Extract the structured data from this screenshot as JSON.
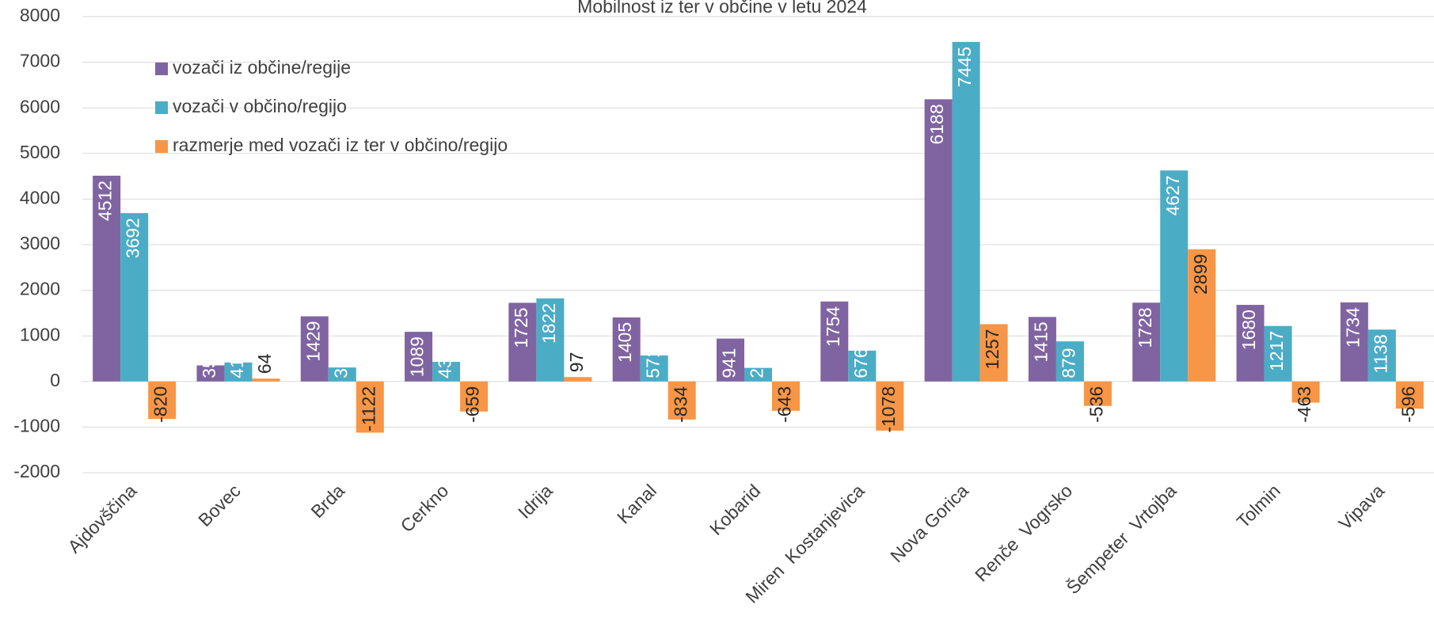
{
  "chart_data": {
    "type": "bar",
    "title": "Mobilnost iz ter v občine v letu 2024",
    "categories": [
      "Ajdovščina",
      "Bovec",
      "Brda",
      "Cerkno",
      "Idrija",
      "Kanal",
      "Kobarid",
      "Miren  Kostanjevica",
      "Nova Gorica",
      "Renče  Vogrsko",
      "Šempeter  Vrtojba",
      "Tolmin",
      "Vipava"
    ],
    "series": [
      {
        "name": "vozači iz občine/regije",
        "color": "#8064a2",
        "values": [
          4512,
          353,
          1429,
          1089,
          1725,
          1405,
          941,
          1754,
          6188,
          1415,
          1728,
          1680,
          1734
        ]
      },
      {
        "name": "vozači v občino/regijo",
        "color": "#4bacc6",
        "values": [
          3692,
          417,
          307,
          430,
          1822,
          571,
          298,
          676,
          7445,
          879,
          4627,
          1217,
          1138
        ]
      },
      {
        "name": "razmerje med vozači iz ter v občino/regijo",
        "color": "#f79646",
        "values": [
          -820,
          64,
          -1122,
          -659,
          97,
          -834,
          -643,
          -1078,
          1257,
          -536,
          2899,
          -463,
          -596
        ]
      }
    ],
    "ylim": [
      -2000,
      8000
    ],
    "yticks": [
      -2000,
      -1000,
      0,
      1000,
      2000,
      3000,
      4000,
      5000,
      6000,
      7000,
      8000
    ],
    "grid": true,
    "legend": "top-left"
  }
}
